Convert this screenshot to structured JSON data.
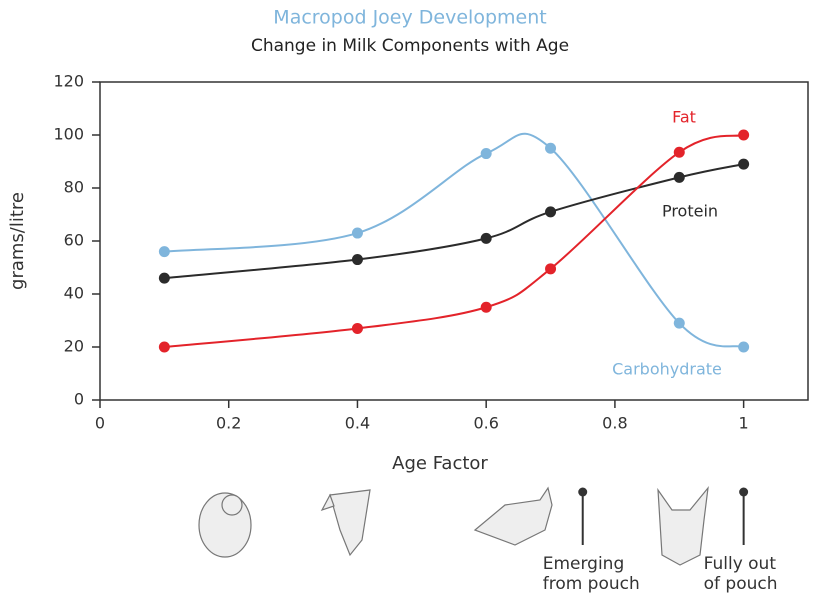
{
  "chart_data": {
    "type": "line",
    "title": "Macropod Joey Development",
    "subtitle": "Change in Milk Components with Age",
    "x_label": "Age Factor",
    "y_label": "grams/litre",
    "x": [
      0.1,
      0.4,
      0.6,
      0.7,
      0.9,
      1
    ],
    "series": [
      {
        "name": "Carbohydrate",
        "color": "#7fb5dc",
        "values": [
          56,
          63,
          93,
          95,
          29,
          20
        ]
      },
      {
        "name": "Protein",
        "color": "#2b2b2b",
        "values": [
          46,
          53,
          61,
          71,
          84,
          89
        ]
      },
      {
        "name": "Fat",
        "color": "#e3232a",
        "values": [
          20,
          27,
          35,
          49.5,
          93.5,
          100
        ]
      }
    ],
    "smooth": true,
    "xlim": [
      0,
      1.1
    ],
    "xticks": [
      0,
      0.2,
      0.4,
      0.6,
      0.8,
      1
    ],
    "ylim": [
      0,
      120
    ],
    "yticks": [
      0,
      20,
      40,
      60,
      80,
      100,
      120
    ],
    "annotations": [
      {
        "x": 0.75,
        "lines": [
          "Emerging",
          "from pouch"
        ]
      },
      {
        "x": 1,
        "lines": [
          "Fully out",
          "of pouch"
        ]
      }
    ]
  }
}
